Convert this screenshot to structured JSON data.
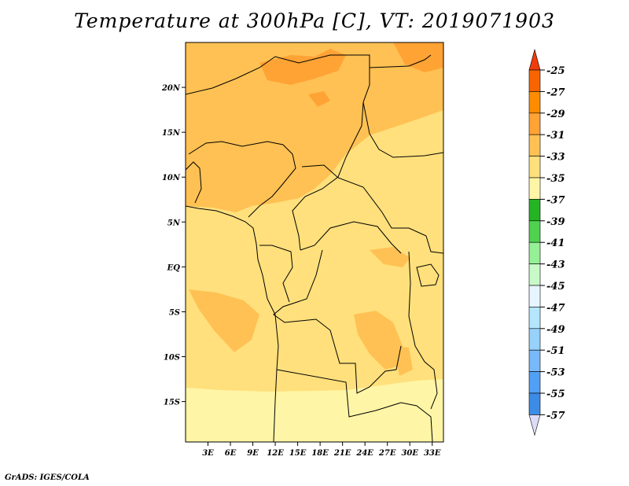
{
  "title": "Temperature at 300hPa [C], VT: 2019071903",
  "credit": "GrADS: IGES/COLA",
  "map": {
    "lon_range": [
      0,
      34.5
    ],
    "lat_range": [
      -19.5,
      25
    ],
    "lat_ticks": [
      {
        "value": 20,
        "label": "20N"
      },
      {
        "value": 15,
        "label": "15N"
      },
      {
        "value": 10,
        "label": "10N"
      },
      {
        "value": 5,
        "label": "5N"
      },
      {
        "value": 0,
        "label": "EQ"
      },
      {
        "value": -5,
        "label": "5S"
      },
      {
        "value": -10,
        "label": "10S"
      },
      {
        "value": -15,
        "label": "15S"
      }
    ],
    "lon_ticks": [
      {
        "value": 3,
        "label": "3E"
      },
      {
        "value": 6,
        "label": "6E"
      },
      {
        "value": 9,
        "label": "9E"
      },
      {
        "value": 12,
        "label": "12E"
      },
      {
        "value": 15,
        "label": "15E"
      },
      {
        "value": 18,
        "label": "18E"
      },
      {
        "value": 21,
        "label": "21E"
      },
      {
        "value": 24,
        "label": "24E"
      },
      {
        "value": 27,
        "label": "27E"
      },
      {
        "value": 30,
        "label": "30E"
      },
      {
        "value": 33,
        "label": "33E"
      }
    ],
    "field_colors": {
      "band_27_29": "#ffa335",
      "band_29_31": "#ffc153",
      "band_31_33": "#ffe07c",
      "band_33_35": "#fff5a6"
    }
  },
  "colorbar": {
    "labels": [
      "-25",
      "-27",
      "-29",
      "-31",
      "-33",
      "-35",
      "-37",
      "-39",
      "-41",
      "-43",
      "-45",
      "-47",
      "-49",
      "-51",
      "-53",
      "-55",
      "-57"
    ],
    "top_color": "#f03c0a",
    "bottom_color": "#dcdcfa",
    "colors": [
      "#fa6400",
      "#ff8c00",
      "#ffa335",
      "#ffc153",
      "#ffe07c",
      "#fff5a6",
      "#24b424",
      "#50d250",
      "#96f096",
      "#c8fac8",
      "#e6f5ff",
      "#b4e6ff",
      "#96d2fa",
      "#78b9fa",
      "#50a0f5",
      "#3c8ce6",
      "#1e6ed2",
      "#1450b4",
      "#0a1e78"
    ]
  }
}
